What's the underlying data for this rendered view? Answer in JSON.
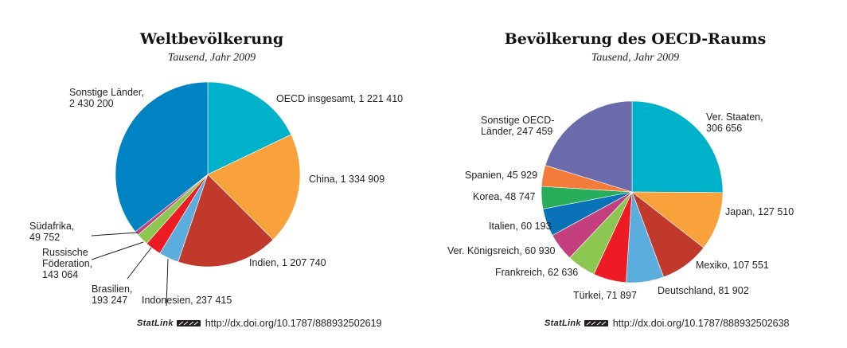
{
  "colors": {
    "teal": "#00b2c9",
    "orange": "#f9a13a",
    "red_brown": "#c0392b",
    "light_blue": "#5aaddc",
    "red": "#ed1c24",
    "green": "#8bc751",
    "magenta": "#c43f7e",
    "dark_blue": "#0083c2",
    "blue": "#0a73b8",
    "emerald": "#28ad5a",
    "coral": "#f47b3a",
    "purple": "#6b6bab"
  },
  "chart_data": [
    {
      "type": "pie",
      "title": "Weltbevölkerung",
      "subtitle": "Tausend, Jahr 2009",
      "start": "12 o'clock",
      "direction": "clockwise",
      "slices": [
        {
          "name": "OECD insgesamt",
          "value": 1221410,
          "label": "OECD insgesamt, 1 221 410",
          "color": "#00b2c9"
        },
        {
          "name": "China",
          "value": 1334909,
          "label": "China, 1 334 909",
          "color": "#f9a13a"
        },
        {
          "name": "Indien",
          "value": 1207740,
          "label": "Indien, 1 207 740",
          "color": "#c0392b"
        },
        {
          "name": "Indonesien",
          "value": 237415,
          "label": "Indonesien, 237 415",
          "color": "#5aaddc"
        },
        {
          "name": "Brasilien",
          "value": 193247,
          "label": "Brasilien,\n193 247",
          "color": "#ed1c24"
        },
        {
          "name": "Russische Föderation",
          "value": 143064,
          "label": "Russische\nFöderation,\n143 064",
          "color": "#8bc751"
        },
        {
          "name": "Südafrika",
          "value": 49752,
          "label": "Südafrika,\n49 752",
          "color": "#c43f7e"
        },
        {
          "name": "Sonstige Länder",
          "value": 2430200,
          "label": "Sonstige Länder,\n2 430 200",
          "color": "#0083c2"
        }
      ],
      "source_label": "StatLink",
      "source_url": "http://dx.doi.org/10.1787/888932502619"
    },
    {
      "type": "pie",
      "title": "Bevölkerung des OECD-Raums",
      "subtitle": "Tausend, Jahr 2009",
      "start": "12 o'clock",
      "direction": "clockwise",
      "slices": [
        {
          "name": "Ver. Staaten",
          "value": 306656,
          "label": "Ver. Staaten,\n306 656",
          "color": "#00b2c9"
        },
        {
          "name": "Japan",
          "value": 127510,
          "label": "Japan, 127 510",
          "color": "#f9a13a"
        },
        {
          "name": "Mexiko",
          "value": 107551,
          "label": "Mexiko, 107 551",
          "color": "#c0392b"
        },
        {
          "name": "Deutschland",
          "value": 81902,
          "label": "Deutschland, 81 902",
          "color": "#5aaddc"
        },
        {
          "name": "Türkei",
          "value": 71897,
          "label": "Türkei, 71 897",
          "color": "#ed1c24"
        },
        {
          "name": "Frankreich",
          "value": 62636,
          "label": "Frankreich, 62 636",
          "color": "#8bc751"
        },
        {
          "name": "Ver. Königsreich",
          "value": 60930,
          "label": "Ver. Königsreich, 60 930",
          "color": "#c43f7e"
        },
        {
          "name": "Italien",
          "value": 60193,
          "label": "Italien, 60 193",
          "color": "#0a73b8"
        },
        {
          "name": "Korea",
          "value": 48747,
          "label": "Korea, 48 747",
          "color": "#28ad5a"
        },
        {
          "name": "Spanien",
          "value": 45929,
          "label": "Spanien, 45 929",
          "color": "#f47b3a"
        },
        {
          "name": "Sonstige OECD-Länder",
          "value": 247459,
          "label": "Sonstige OECD-\nLänder, 247 459",
          "color": "#6b6bab"
        }
      ],
      "source_label": "StatLink",
      "source_url": "http://dx.doi.org/10.1787/888932502638"
    }
  ]
}
